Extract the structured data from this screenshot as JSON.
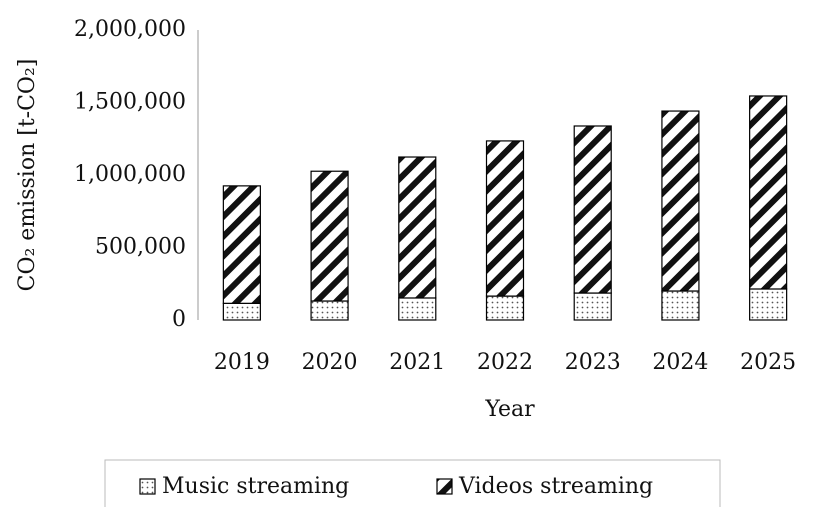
{
  "chart_data": {
    "type": "stacked_bar",
    "x_label": "Year",
    "y_label": "CO₂ emission [t-CO₂]",
    "categories": [
      "2019",
      "2020",
      "2021",
      "2022",
      "2023",
      "2024",
      "2025"
    ],
    "series": [
      {
        "name": "Music streaming",
        "color": "#000000",
        "hatch": "dots",
        "values": [
          115000,
          131000,
          152000,
          165000,
          186000,
          200000,
          214000
        ]
      },
      {
        "name": "Videos streaming",
        "color": "#000000",
        "hatch": "diagonal",
        "values": [
          810000,
          895000,
          972000,
          1070000,
          1152000,
          1241000,
          1331000
        ]
      }
    ],
    "ylim": [
      0,
      2000000
    ],
    "yticks": [
      0,
      {
        "value": 500000,
        "label": "500,000"
      },
      {
        "value": 1000000,
        "label": "1,000,000"
      },
      {
        "value": 1500000,
        "label": "1,500,000"
      },
      {
        "value": 2000000,
        "label": "2,000,000"
      }
    ],
    "legend": "bottom"
  }
}
